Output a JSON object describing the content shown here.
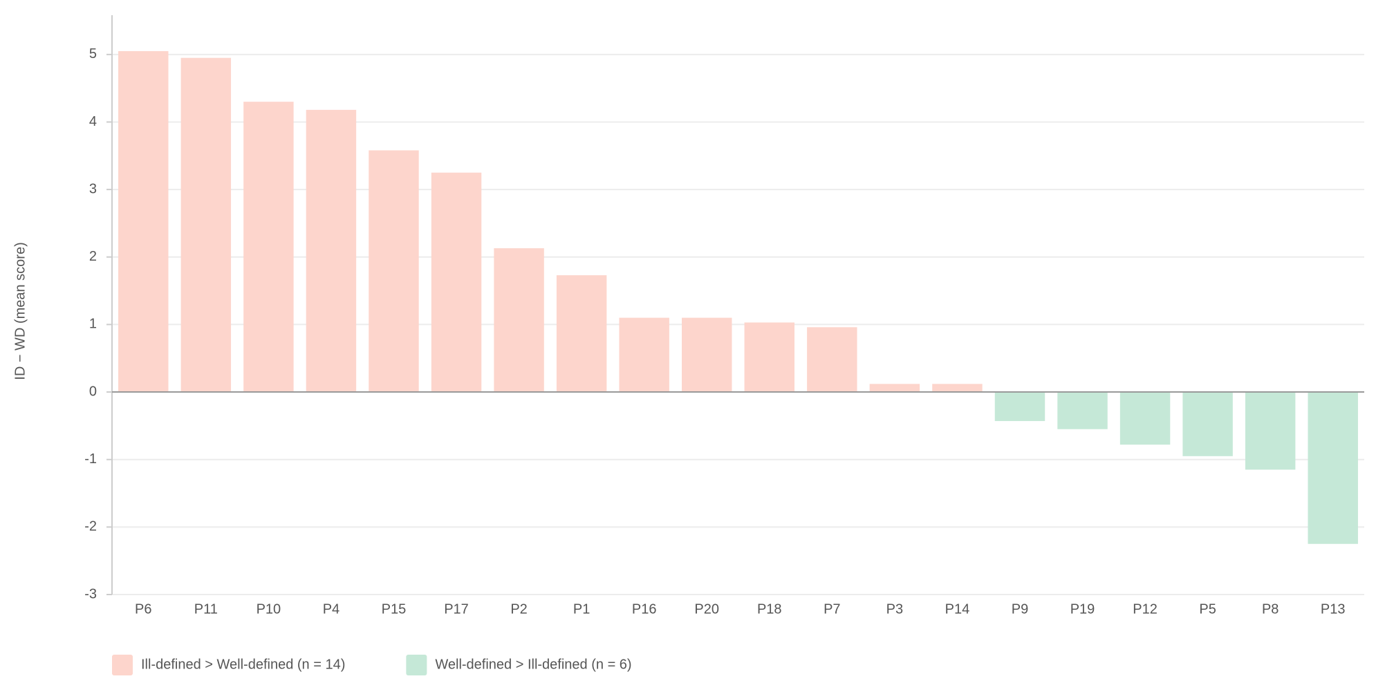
{
  "chart_data": {
    "type": "bar",
    "y_label": "ID − WD (mean score)",
    "categories": [
      "P6",
      "P11",
      "P10",
      "P4",
      "P15",
      "P17",
      "P2",
      "P1",
      "P16",
      "P20",
      "P18",
      "P7",
      "P3",
      "P14",
      "P9",
      "P19",
      "P12",
      "P5",
      "P8",
      "P13"
    ],
    "series": [
      {
        "name": "Ill-defined > Well-defined (n = 14)",
        "color": "#fdd5cc",
        "values": [
          5.05,
          4.95,
          4.3,
          4.18,
          3.58,
          3.25,
          2.13,
          1.73,
          1.1,
          1.1,
          1.03,
          0.96,
          0.12,
          0.12,
          null,
          null,
          null,
          null,
          null,
          null
        ]
      },
      {
        "name": "Well-defined > Ill-defined (n = 6)",
        "color": "#c5e8d7",
        "values": [
          null,
          null,
          null,
          null,
          null,
          null,
          null,
          null,
          null,
          null,
          null,
          null,
          null,
          null,
          -0.43,
          -0.55,
          -0.78,
          -0.95,
          -1.15,
          -2.25
        ]
      }
    ],
    "ylim": [
      -3,
      5.5
    ],
    "yticks": [
      -3,
      -2,
      -1,
      0,
      1,
      2,
      3,
      4,
      5
    ],
    "grid": true
  }
}
